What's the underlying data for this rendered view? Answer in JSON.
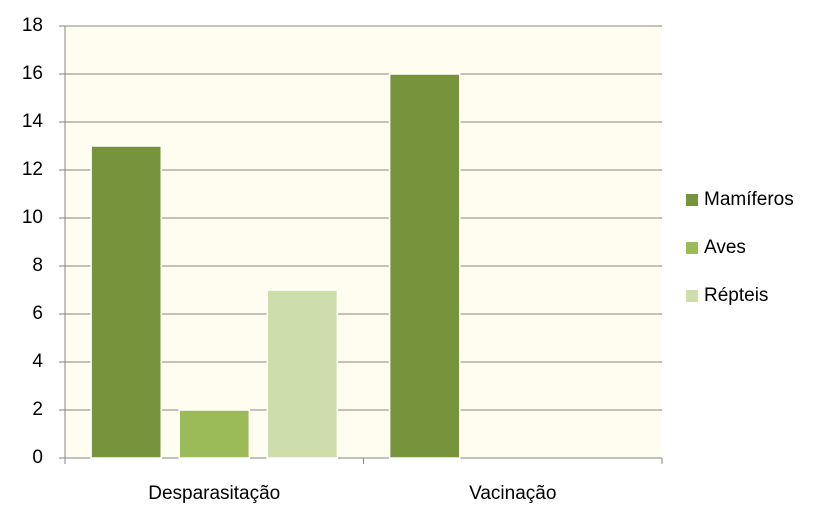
{
  "chart_data": {
    "type": "bar",
    "categories": [
      "Desparasitação",
      "Vacinação"
    ],
    "series": [
      {
        "name": "Mamíferos",
        "color": "#77933c",
        "values": [
          13,
          16
        ]
      },
      {
        "name": "Aves",
        "color": "#9bbb59",
        "values": [
          2,
          null
        ]
      },
      {
        "name": "Répteis",
        "color": "#cddeab",
        "values": [
          7,
          null
        ]
      }
    ],
    "ylim": [
      0,
      18
    ],
    "yticks": [
      0,
      2,
      4,
      6,
      8,
      10,
      12,
      14,
      16,
      18
    ],
    "grid": true,
    "legend": "right"
  }
}
